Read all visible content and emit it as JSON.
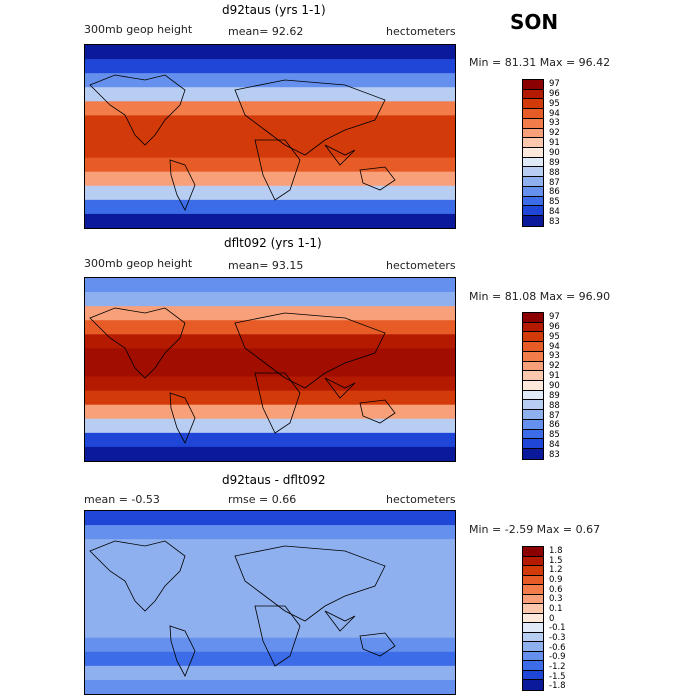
{
  "season": "SON",
  "panels": [
    {
      "title": "d92taus (yrs 1-1)",
      "field_label": "300mb geop height",
      "stat1": "mean=  92.62",
      "stat2": "",
      "units": "hectometers",
      "minmax": "Min =  81.31 Max =  96.42",
      "colorbar_labels": [
        "97",
        "96",
        "95",
        "94",
        "93",
        "92",
        "91",
        "90",
        "89",
        "88",
        "87",
        "86",
        "85",
        "84",
        "83"
      ],
      "colorbar_colors": [
        "#8b0000",
        "#b31a00",
        "#d23a0a",
        "#e65b26",
        "#f27c4a",
        "#f8a07a",
        "#fbc8ad",
        "#fde8dc",
        "#dfe9f7",
        "#b7cdf2",
        "#8fb0ef",
        "#6690ee",
        "#3c6ce8",
        "#1f46d6",
        "#0a1a9a"
      ],
      "map_bands": [
        "#0a1a9a",
        "#1f46d6",
        "#6690ee",
        "#b7cdf2",
        "#f27c4a",
        "#d23a0a",
        "#d23a0a",
        "#d23a0a",
        "#e65b26",
        "#f8a07a",
        "#b7cdf2",
        "#3c6ce8",
        "#0a1a9a"
      ]
    },
    {
      "title": "dflt092 (yrs 1-1)",
      "field_label": "300mb geop height",
      "stat1": "mean=  93.15",
      "stat2": "",
      "units": "hectometers",
      "minmax": "Min =  81.08 Max =  96.90",
      "colorbar_labels": [
        "97",
        "96",
        "95",
        "94",
        "93",
        "92",
        "91",
        "90",
        "89",
        "88",
        "87",
        "86",
        "85",
        "84",
        "83"
      ],
      "colorbar_colors": [
        "#8b0000",
        "#b31a00",
        "#d23a0a",
        "#e65b26",
        "#f27c4a",
        "#f8a07a",
        "#fbc8ad",
        "#fde8dc",
        "#dfe9f7",
        "#b7cdf2",
        "#8fb0ef",
        "#6690ee",
        "#3c6ce8",
        "#1f46d6",
        "#0a1a9a"
      ],
      "map_bands": [
        "#6690ee",
        "#8fb0ef",
        "#f8a07a",
        "#e65b26",
        "#b31a00",
        "#a10e00",
        "#a10e00",
        "#b31a00",
        "#d23a0a",
        "#f8a07a",
        "#b7cdf2",
        "#1f46d6",
        "#0a1a9a"
      ]
    },
    {
      "title": "d92taus - dflt092",
      "field_label": "",
      "stat1": "mean =   -0.53",
      "stat2": "rmse =    0.66",
      "units": "hectometers",
      "minmax": "Min =  -2.59 Max =   0.67",
      "colorbar_labels": [
        "1.8",
        "1.5",
        "1.2",
        "0.9",
        "0.6",
        "0.3",
        "0.1",
        "0",
        "-0.1",
        "-0.3",
        "-0.6",
        "-0.9",
        "-1.2",
        "-1.5",
        "-1.8"
      ],
      "colorbar_colors": [
        "#8b0000",
        "#b31a00",
        "#d23a0a",
        "#e65b26",
        "#f27c4a",
        "#f8a07a",
        "#fbc8ad",
        "#fde8dc",
        "#dfe9f7",
        "#b7cdf2",
        "#8fb0ef",
        "#6690ee",
        "#3c6ce8",
        "#1f46d6",
        "#0a1a9a"
      ],
      "map_bands": [
        "#1f46d6",
        "#6690ee",
        "#8fb0ef",
        "#8fb0ef",
        "#8fb0ef",
        "#8fb0ef",
        "#8fb0ef",
        "#8fb0ef",
        "#8fb0ef",
        "#6690ee",
        "#3c6ce8",
        "#8fb0ef",
        "#6690ee"
      ]
    }
  ]
}
